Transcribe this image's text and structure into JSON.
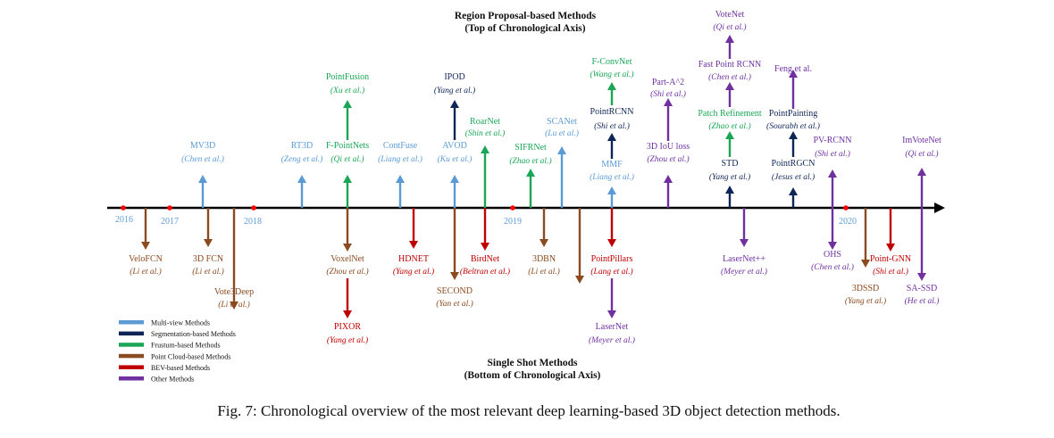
{
  "title_top": [
    "Region Proposal-based Methods",
    "(Top of Chronological Axis)"
  ],
  "title_bottom": [
    "Single Shot Methods",
    "(Bottom of Chronological Axis)"
  ],
  "caption": "Fig. 7: Chronological overview of the most relevant deep learning-based 3D object detection methods.",
  "colors": {
    "multi_view": "#5b9bd5",
    "segmentation": "#0f2557",
    "frustum": "#1aa655",
    "point_cloud": "#8b4a1f",
    "bev": "#c00000",
    "other": "#7030a0",
    "axis": "#000000",
    "year_dot": "#ff0000",
    "year_text": "#5b9bd5"
  },
  "legend": [
    {
      "label": "Multi-view Methods",
      "cat": "multi_view"
    },
    {
      "label": "Segmentation-based Methods",
      "cat": "segmentation"
    },
    {
      "label": "Frustum-based Methods",
      "cat": "frustum"
    },
    {
      "label": "Point Cloud-based Methods",
      "cat": "point_cloud"
    },
    {
      "label": "BEV-based Methods",
      "cat": "bev"
    },
    {
      "label": "Other Methods",
      "cat": "other"
    }
  ],
  "years": [
    "2016",
    "2017",
    "2018",
    "2019",
    "2020"
  ],
  "methods_top": [
    {
      "name": "MV3D",
      "author": "(Chen et al.)",
      "cat": "multi_view"
    },
    {
      "name": "RT3D",
      "author": "(Zeng et al.)",
      "cat": "multi_view"
    },
    {
      "name": "F-PointNets",
      "author": "(Qi et al.)",
      "cat": "frustum"
    },
    {
      "name": "PointFusion",
      "author": "(Xu et al.)",
      "cat": "frustum"
    },
    {
      "name": "ContFuse",
      "author": "(Liang et al.)",
      "cat": "multi_view"
    },
    {
      "name": "AVOD",
      "author": "(Ku et al.)",
      "cat": "multi_view"
    },
    {
      "name": "IPOD",
      "author": "(Yang et al.)",
      "cat": "segmentation"
    },
    {
      "name": "RoarNet",
      "author": "(Shin et al.)",
      "cat": "frustum"
    },
    {
      "name": "SIFRNet",
      "author": "(Zhao et al.)",
      "cat": "frustum"
    },
    {
      "name": "SCANet",
      "author": "(Lu et al.)",
      "cat": "multi_view"
    },
    {
      "name": "MMF",
      "author": "(Liang et al.)",
      "cat": "multi_view"
    },
    {
      "name": "PointRCNN",
      "author": "(Shi et al.)",
      "cat": "segmentation"
    },
    {
      "name": "F-ConvNet",
      "author": "(Wang et al.)",
      "cat": "frustum"
    },
    {
      "name": "3D IoU loss",
      "author": "(Zhou et al.)",
      "cat": "other"
    },
    {
      "name": "Part-A^2",
      "author": "(Shi et al.)",
      "cat": "other"
    },
    {
      "name": "STD",
      "author": "(Yang et al.)",
      "cat": "segmentation"
    },
    {
      "name": "Patch Refinement",
      "author": "(Zhao et al.)",
      "cat": "frustum"
    },
    {
      "name": "Fast Point RCNN",
      "author": "(Chen et al.)",
      "cat": "other"
    },
    {
      "name": "VoteNet",
      "author": "(Qi et al.)",
      "cat": "other"
    },
    {
      "name": "PointRGCN",
      "author": "(Jesus et al.)",
      "cat": "segmentation"
    },
    {
      "name": "PointPainting",
      "author": "(Sourabh et al.)",
      "cat": "segmentation"
    },
    {
      "name": "Feng et al.",
      "author": "",
      "cat": "other"
    },
    {
      "name": "PV-RCNN",
      "author": "(Shi et al.)",
      "cat": "other"
    },
    {
      "name": "ImVoteNet",
      "author": "(Qi et al.)",
      "cat": "other"
    }
  ],
  "methods_bottom": [
    {
      "name": "VeloFCN",
      "author": "(Li et al.)",
      "cat": "point_cloud"
    },
    {
      "name": "3D FCN",
      "author": "(Li et al.)",
      "cat": "point_cloud"
    },
    {
      "name": "Vote3Deep",
      "author": "(Li et al.)",
      "cat": "point_cloud"
    },
    {
      "name": "VoxelNet",
      "author": "(Zhou et al.)",
      "cat": "point_cloud"
    },
    {
      "name": "PIXOR",
      "author": "(Yang et al.)",
      "cat": "bev"
    },
    {
      "name": "HDNET",
      "author": "(Yang et al.)",
      "cat": "bev"
    },
    {
      "name": "SECOND",
      "author": "(Yan et al.)",
      "cat": "point_cloud"
    },
    {
      "name": "BirdNet",
      "author": "(Beltran et al.)",
      "cat": "bev"
    },
    {
      "name": "3DBN",
      "author": "(Li et al.)",
      "cat": "point_cloud"
    },
    {
      "name": "PointPillars",
      "author": "(Lang et al.)",
      "cat": "bev"
    },
    {
      "name": "LaserNet",
      "author": "(Meyer et al.)",
      "cat": "other"
    },
    {
      "name": "LaserNet++",
      "author": "(Meyer et al.)",
      "cat": "other"
    },
    {
      "name": "OHS",
      "author": "(Chen et al.)",
      "cat": "other"
    },
    {
      "name": "3DSSD",
      "author": "(Yang et al.)",
      "cat": "point_cloud"
    },
    {
      "name": "Point-GNN",
      "author": "(Shi et al.)",
      "cat": "bev"
    },
    {
      "name": "SA-SSD",
      "author": "(He et al.)",
      "cat": "other"
    }
  ]
}
